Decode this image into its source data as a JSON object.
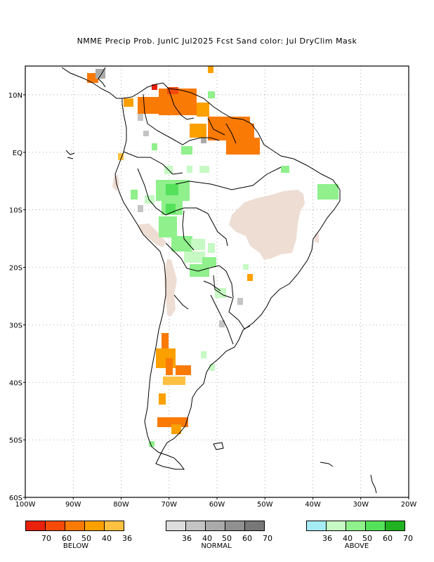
{
  "title": "NMME Precip Prob. JunIC  Jul2025 Fcst  Sand color: Jul DryClim Mask",
  "axes": {
    "lat_labels": [
      "10N",
      "EQ",
      "10S",
      "20S",
      "30S",
      "40S",
      "50S",
      "60S"
    ],
    "lon_labels": [
      "100W",
      "90W",
      "80W",
      "70W",
      "60W",
      "50W",
      "40W",
      "30W",
      "20W"
    ],
    "lon_range": [
      -100,
      -20
    ],
    "lat_range": [
      -60,
      15
    ],
    "grid": "dotted"
  },
  "colors": {
    "sand": "#eeddd3",
    "below": [
      "#e8200c",
      "#f54a0a",
      "#fa7a06",
      "#fca000",
      "#fdc040"
    ],
    "normal": [
      "#dddddd",
      "#c4c4c4",
      "#aaaaaa",
      "#909090",
      "#777777"
    ],
    "above": [
      "#a6ecf4",
      "#c6f9c3",
      "#8ff08c",
      "#55e25a",
      "#21b221"
    ]
  },
  "legends": {
    "below": {
      "name": "BELOW",
      "ticks": [
        "70",
        "60",
        "50",
        "40",
        "36"
      ]
    },
    "normal": {
      "name": "NORMAL",
      "ticks": [
        "36",
        "40",
        "50",
        "60",
        "70"
      ]
    },
    "above": {
      "name": "ABOVE",
      "ticks": [
        "36",
        "40",
        "50",
        "60",
        "70"
      ]
    }
  }
}
